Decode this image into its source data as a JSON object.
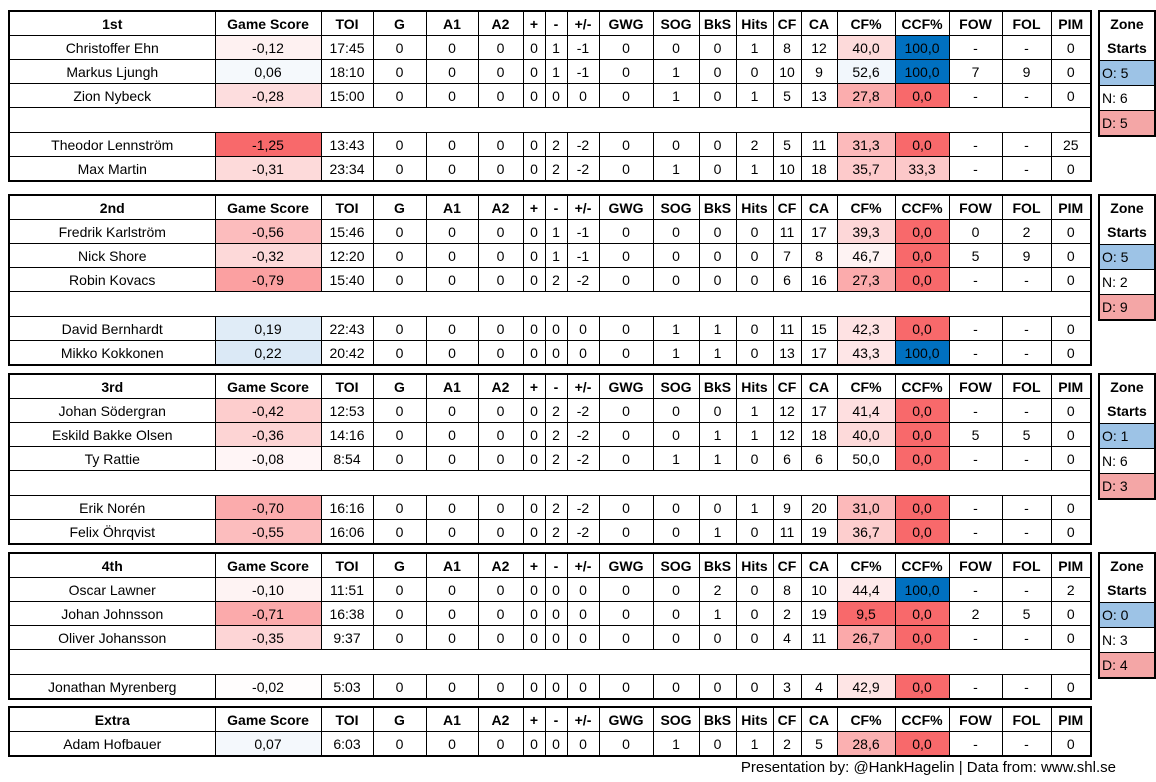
{
  "headers": [
    "Game Score",
    "TOI",
    "G",
    "A1",
    "A2",
    "+",
    "-",
    "+/-",
    "GWG",
    "SOG",
    "BkS",
    "Hits",
    "CF",
    "CA",
    "CF%",
    "CCF%",
    "FOW",
    "FOL",
    "PIM"
  ],
  "zone_title": [
    "Zone",
    "Starts"
  ],
  "colors": {
    "red": "#f8696b",
    "blue": "#5b9bd5",
    "ccf_blue": "#0070c0",
    "zone_o": "#9dc3e6",
    "zone_d": "#f4a6a6"
  },
  "blocks": [
    {
      "label": "1st",
      "zone": [
        "O: 5",
        "N: 6",
        "D: 5"
      ],
      "rows": [
        [
          "Christoffer Ehn",
          "-0,12",
          "17:45",
          "0",
          "0",
          "0",
          "0",
          "1",
          "-1",
          "0",
          "0",
          "0",
          "1",
          "8",
          "12",
          "40,0",
          "100,0",
          "-",
          "-",
          "0"
        ],
        [
          "Markus Ljungh",
          "0,06",
          "18:10",
          "0",
          "0",
          "0",
          "0",
          "1",
          "-1",
          "0",
          "1",
          "0",
          "0",
          "10",
          "9",
          "52,6",
          "100,0",
          "7",
          "9",
          "0"
        ],
        [
          "Zion Nybeck",
          "-0,28",
          "15:00",
          "0",
          "0",
          "0",
          "0",
          "0",
          "0",
          "0",
          "1",
          "0",
          "1",
          "5",
          "13",
          "27,8",
          "0,0",
          "-",
          "-",
          "0"
        ],
        null,
        [
          "Theodor Lennström",
          "-1,25",
          "13:43",
          "0",
          "0",
          "0",
          "0",
          "2",
          "-2",
          "0",
          "0",
          "0",
          "2",
          "5",
          "11",
          "31,3",
          "0,0",
          "-",
          "-",
          "25"
        ],
        [
          "Max Martin",
          "-0,31",
          "23:34",
          "0",
          "0",
          "0",
          "0",
          "2",
          "-2",
          "0",
          "1",
          "0",
          "1",
          "10",
          "18",
          "35,7",
          "33,3",
          "-",
          "-",
          "0"
        ]
      ]
    },
    {
      "label": "2nd",
      "zone": [
        "O: 5",
        "N: 2",
        "D: 9"
      ],
      "rows": [
        [
          "Fredrik Karlström",
          "-0,56",
          "15:46",
          "0",
          "0",
          "0",
          "0",
          "1",
          "-1",
          "0",
          "0",
          "0",
          "0",
          "11",
          "17",
          "39,3",
          "0,0",
          "0",
          "2",
          "0"
        ],
        [
          "Nick Shore",
          "-0,32",
          "12:20",
          "0",
          "0",
          "0",
          "0",
          "1",
          "-1",
          "0",
          "0",
          "0",
          "0",
          "7",
          "8",
          "46,7",
          "0,0",
          "5",
          "9",
          "0"
        ],
        [
          "Robin Kovacs",
          "-0,79",
          "15:40",
          "0",
          "0",
          "0",
          "0",
          "2",
          "-2",
          "0",
          "0",
          "0",
          "0",
          "6",
          "16",
          "27,3",
          "0,0",
          "-",
          "-",
          "0"
        ],
        null,
        [
          "David Bernhardt",
          "0,19",
          "22:43",
          "0",
          "0",
          "0",
          "0",
          "0",
          "0",
          "0",
          "1",
          "1",
          "0",
          "11",
          "15",
          "42,3",
          "0,0",
          "-",
          "-",
          "0"
        ],
        [
          "Mikko Kokkonen",
          "0,22",
          "20:42",
          "0",
          "0",
          "0",
          "0",
          "0",
          "0",
          "0",
          "1",
          "1",
          "0",
          "13",
          "17",
          "43,3",
          "100,0",
          "-",
          "-",
          "0"
        ]
      ]
    },
    {
      "label": "3rd",
      "zone": [
        "O: 1",
        "N: 6",
        "D: 3"
      ],
      "rows": [
        [
          "Johan Södergran",
          "-0,42",
          "12:53",
          "0",
          "0",
          "0",
          "0",
          "2",
          "-2",
          "0",
          "0",
          "0",
          "1",
          "12",
          "17",
          "41,4",
          "0,0",
          "-",
          "-",
          "0"
        ],
        [
          "Eskild Bakke Olsen",
          "-0,36",
          "14:16",
          "0",
          "0",
          "0",
          "0",
          "2",
          "-2",
          "0",
          "0",
          "1",
          "1",
          "12",
          "18",
          "40,0",
          "0,0",
          "5",
          "5",
          "0"
        ],
        [
          "Ty Rattie",
          "-0,08",
          "8:54",
          "0",
          "0",
          "0",
          "0",
          "2",
          "-2",
          "0",
          "1",
          "1",
          "0",
          "6",
          "6",
          "50,0",
          "0,0",
          "-",
          "-",
          "0"
        ],
        null,
        [
          "Erik Norén",
          "-0,70",
          "16:16",
          "0",
          "0",
          "0",
          "0",
          "2",
          "-2",
          "0",
          "0",
          "0",
          "1",
          "9",
          "20",
          "31,0",
          "0,0",
          "-",
          "-",
          "0"
        ],
        [
          "Felix Öhrqvist",
          "-0,55",
          "16:06",
          "0",
          "0",
          "0",
          "0",
          "2",
          "-2",
          "0",
          "0",
          "1",
          "0",
          "11",
          "19",
          "36,7",
          "0,0",
          "-",
          "-",
          "0"
        ]
      ]
    },
    {
      "label": "4th",
      "zone": [
        "O: 0",
        "N: 3",
        "D: 4"
      ],
      "rows": [
        [
          "Oscar Lawner",
          "-0,10",
          "11:51",
          "0",
          "0",
          "0",
          "0",
          "0",
          "0",
          "0",
          "0",
          "2",
          "0",
          "8",
          "10",
          "44,4",
          "100,0",
          "-",
          "-",
          "2"
        ],
        [
          "Johan Johnsson",
          "-0,71",
          "16:38",
          "0",
          "0",
          "0",
          "0",
          "0",
          "0",
          "0",
          "0",
          "1",
          "0",
          "2",
          "19",
          "9,5",
          "0,0",
          "2",
          "5",
          "0"
        ],
        [
          "Oliver Johansson",
          "-0,35",
          "9:37",
          "0",
          "0",
          "0",
          "0",
          "0",
          "0",
          "0",
          "0",
          "0",
          "0",
          "4",
          "11",
          "26,7",
          "0,0",
          "-",
          "-",
          "0"
        ],
        null,
        [
          "Jonathan Myrenberg",
          "-0,02",
          "5:03",
          "0",
          "0",
          "0",
          "0",
          "0",
          "0",
          "0",
          "0",
          "0",
          "0",
          "3",
          "4",
          "42,9",
          "0,0",
          "-",
          "-",
          "0"
        ]
      ]
    },
    {
      "label": "Extra",
      "zone": null,
      "rows": [
        [
          "Adam Hofbauer",
          "0,07",
          "6:03",
          "0",
          "0",
          "0",
          "0",
          "0",
          "0",
          "0",
          "1",
          "0",
          "1",
          "2",
          "5",
          "28,6",
          "0,0",
          "-",
          "-",
          "0"
        ]
      ]
    }
  ],
  "footer": "Presentation by: @HankHagelin | Data from: www.shl.se"
}
